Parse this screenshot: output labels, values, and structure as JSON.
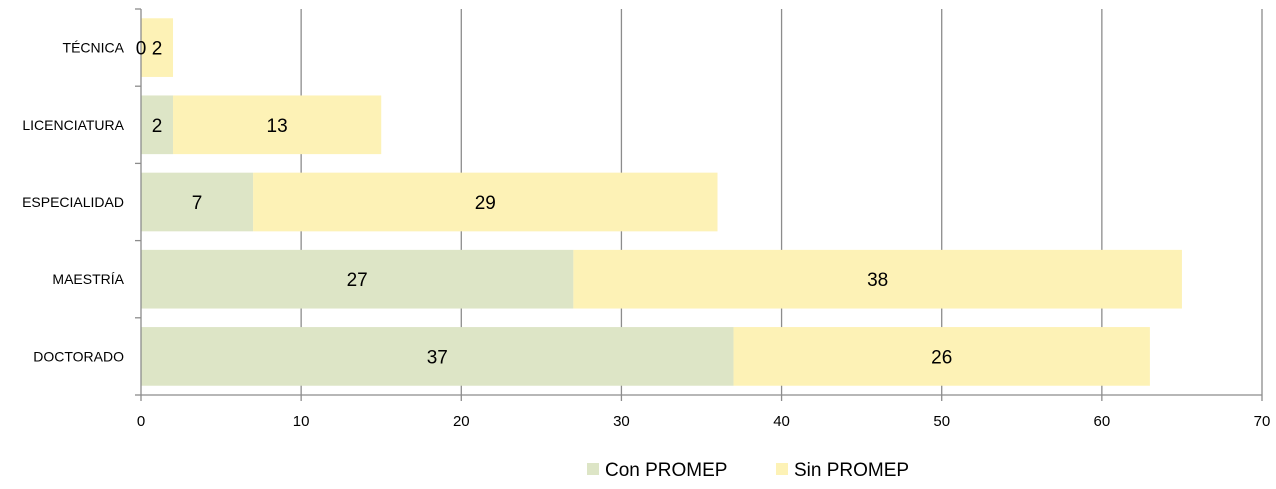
{
  "chart_data": {
    "type": "bar",
    "orientation": "horizontal",
    "stacked": true,
    "categories": [
      "TÉCNICA",
      "LICENCIATURA",
      "ESPECIALIDAD",
      "MAESTRÍA",
      "DOCTORADO"
    ],
    "series": [
      {
        "name": "Con PROMEP",
        "values": [
          0,
          2,
          7,
          27,
          37
        ],
        "color": "#dde5c6"
      },
      {
        "name": "Sin PROMEP",
        "values": [
          2,
          13,
          29,
          38,
          26
        ],
        "color": "#fdf2b6"
      }
    ],
    "xlim": [
      0,
      70
    ],
    "xticks": [
      0,
      10,
      20,
      30,
      40,
      50,
      60,
      70
    ],
    "xgrid": true,
    "legend_position": "bottom",
    "data_labels": true,
    "gridline_color": "#8c8c8c"
  }
}
